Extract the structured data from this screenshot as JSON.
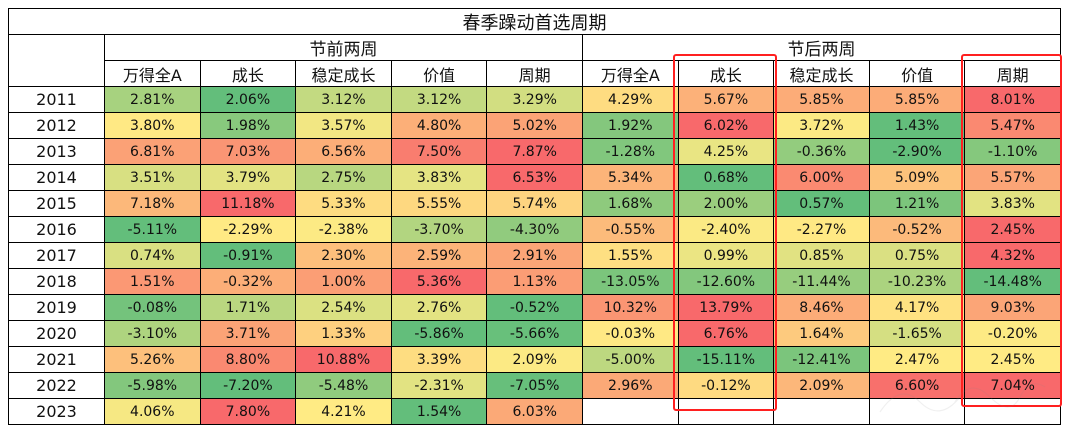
{
  "chart_data": {
    "type": "table",
    "title": "春季躁动首选周期",
    "groups": [
      "节前两周",
      "节后两周"
    ],
    "styles": [
      "万得全A",
      "成长",
      "稳定成长",
      "价值",
      "周期"
    ],
    "years": [
      "2011",
      "2012",
      "2013",
      "2014",
      "2015",
      "2016",
      "2017",
      "2018",
      "2019",
      "2020",
      "2021",
      "2022",
      "2023"
    ],
    "pre_holiday": [
      [
        "2.81%",
        "2.06%",
        "3.12%",
        "3.12%",
        "3.29%"
      ],
      [
        "3.80%",
        "1.98%",
        "3.57%",
        "4.80%",
        "5.02%"
      ],
      [
        "6.81%",
        "7.03%",
        "6.56%",
        "7.50%",
        "7.87%"
      ],
      [
        "3.51%",
        "3.79%",
        "2.75%",
        "3.83%",
        "6.53%"
      ],
      [
        "7.18%",
        "11.18%",
        "5.33%",
        "5.55%",
        "5.74%"
      ],
      [
        "-5.11%",
        "-2.29%",
        "-2.38%",
        "-3.70%",
        "-4.30%"
      ],
      [
        "0.74%",
        "-0.91%",
        "2.30%",
        "2.59%",
        "2.91%"
      ],
      [
        "1.51%",
        "-0.32%",
        "1.00%",
        "5.36%",
        "1.13%"
      ],
      [
        "-0.08%",
        "1.71%",
        "2.54%",
        "2.76%",
        "-0.52%"
      ],
      [
        "-3.10%",
        "3.71%",
        "1.33%",
        "-5.86%",
        "-5.66%"
      ],
      [
        "5.26%",
        "8.80%",
        "10.88%",
        "3.39%",
        "2.09%"
      ],
      [
        "-5.98%",
        "-7.20%",
        "-5.48%",
        "-2.31%",
        "-7.05%"
      ],
      [
        "4.06%",
        "7.80%",
        "4.21%",
        "1.54%",
        "6.03%"
      ]
    ],
    "post_holiday": [
      [
        "4.29%",
        "5.67%",
        "5.85%",
        "5.85%",
        "8.01%"
      ],
      [
        "1.92%",
        "6.02%",
        "3.72%",
        "1.43%",
        "5.47%"
      ],
      [
        "-1.28%",
        "4.25%",
        "-0.36%",
        "-2.90%",
        "-1.10%"
      ],
      [
        "5.34%",
        "0.68%",
        "6.00%",
        "5.09%",
        "5.57%"
      ],
      [
        "1.68%",
        "2.00%",
        "0.57%",
        "1.21%",
        "3.83%"
      ],
      [
        "-0.55%",
        "-2.40%",
        "-2.27%",
        "-0.52%",
        "2.45%"
      ],
      [
        "1.55%",
        "0.99%",
        "0.85%",
        "0.75%",
        "4.32%"
      ],
      [
        "-13.05%",
        "-12.60%",
        "-11.44%",
        "-10.23%",
        "-14.48%"
      ],
      [
        "10.32%",
        "13.79%",
        "8.46%",
        "4.17%",
        "9.03%"
      ],
      [
        "-0.03%",
        "6.76%",
        "1.64%",
        "-1.65%",
        "-0.20%"
      ],
      [
        "-5.00%",
        "-15.11%",
        "-12.41%",
        "2.47%",
        "2.45%"
      ],
      [
        "2.96%",
        "-0.12%",
        "2.09%",
        "6.60%",
        "7.04%"
      ],
      [
        "",
        "",
        "",
        "",
        ""
      ]
    ],
    "highlighted_columns": [
      "节后两周 成长",
      "节后两周 周期"
    ],
    "colors": {
      "red": "#f8696b",
      "yellow": "#ffeb84",
      "green": "#63be7b",
      "highlight": "#ff2020"
    }
  }
}
